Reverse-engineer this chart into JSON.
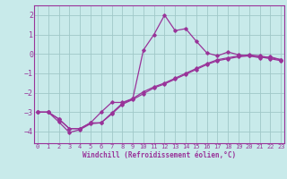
{
  "xlabel": "Windchill (Refroidissement éolien,°C)",
  "bg_color": "#c8eaea",
  "grid_color": "#a0c8c8",
  "line_color": "#993399",
  "x_ticks": [
    0,
    1,
    2,
    3,
    4,
    5,
    6,
    7,
    8,
    9,
    10,
    11,
    12,
    13,
    14,
    15,
    16,
    17,
    18,
    19,
    20,
    21,
    22,
    23
  ],
  "y_ticks": [
    -4,
    -3,
    -2,
    -1,
    0,
    1,
    2
  ],
  "ylim": [
    -4.6,
    2.5
  ],
  "xlim": [
    -0.3,
    23.3
  ],
  "line1_x": [
    0,
    1,
    2,
    3,
    4,
    5,
    6,
    7,
    8,
    9,
    10,
    11,
    12,
    13,
    14,
    15,
    16,
    17,
    18,
    19,
    20,
    21,
    22,
    23
  ],
  "line1_y": [
    -3.0,
    -3.0,
    -3.35,
    -3.85,
    -3.85,
    -3.55,
    -3.55,
    -3.05,
    -2.55,
    -2.3,
    -1.95,
    -1.7,
    -1.5,
    -1.25,
    -1.0,
    -0.75,
    -0.5,
    -0.3,
    -0.2,
    -0.1,
    -0.05,
    -0.1,
    -0.2,
    -0.3
  ],
  "line2_x": [
    0,
    1,
    2,
    3,
    4,
    5,
    6,
    7,
    8,
    9,
    10,
    11,
    12,
    13,
    14,
    15,
    16,
    17,
    18,
    19,
    20,
    21,
    22,
    23
  ],
  "line2_y": [
    -3.0,
    -3.0,
    -3.5,
    -4.05,
    -3.9,
    -3.6,
    -3.55,
    -3.1,
    -2.6,
    -2.35,
    -2.05,
    -1.75,
    -1.55,
    -1.3,
    -1.05,
    -0.8,
    -0.55,
    -0.35,
    -0.25,
    -0.15,
    -0.1,
    -0.15,
    -0.25,
    -0.35
  ],
  "line3_x": [
    0,
    1,
    2,
    3,
    4,
    5,
    6,
    7,
    8,
    9,
    10,
    11,
    12,
    13,
    14,
    15,
    16,
    17,
    18,
    19,
    20,
    21,
    22,
    23
  ],
  "line3_y": [
    -3.0,
    -3.0,
    -3.35,
    -3.85,
    -3.85,
    -3.55,
    -3.0,
    -2.5,
    -2.5,
    -2.3,
    0.2,
    1.0,
    2.0,
    1.2,
    1.3,
    0.65,
    0.05,
    -0.1,
    0.1,
    -0.05,
    -0.1,
    -0.2,
    -0.15,
    -0.3
  ]
}
